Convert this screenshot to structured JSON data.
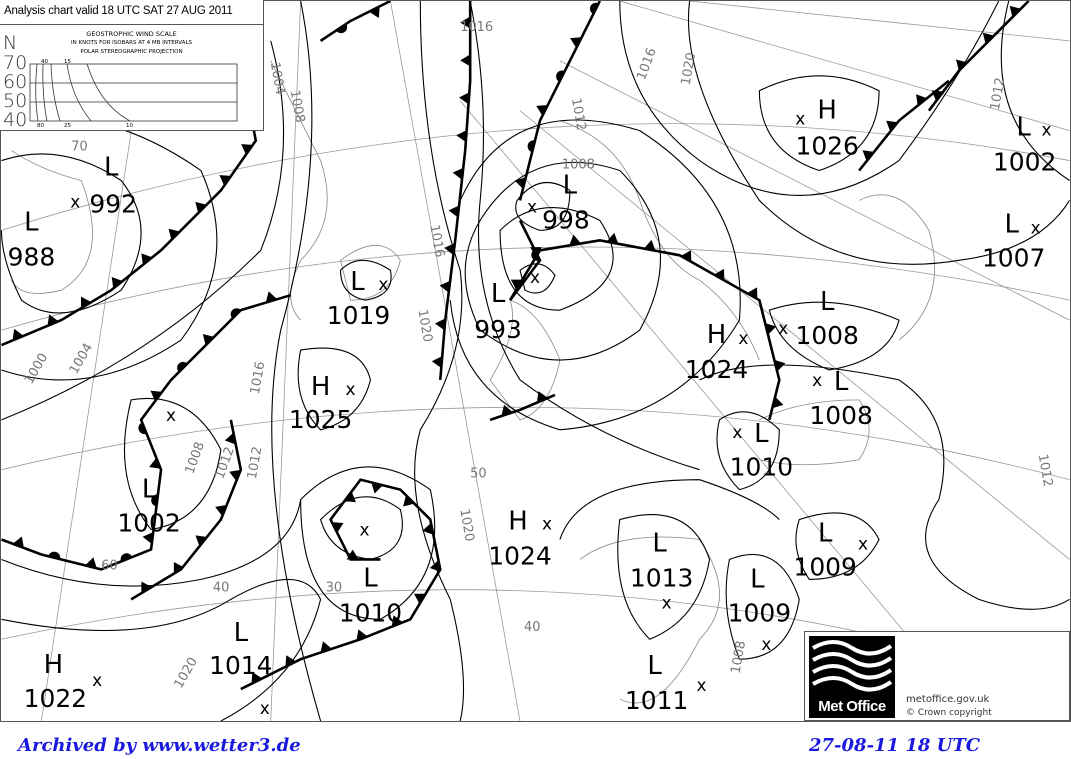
{
  "header": {
    "title": "Analysis chart valid 18 UTC SAT 27 AUG 2011",
    "wind_scale_title": "GEOSTROPHIC WIND SCALE",
    "wind_scale_subtitle": "IN KNOTS FOR ISOBARS AT  4 MB INTERVALS",
    "projection": "POLAR STEREOGRAPHIC PROJECTION",
    "north_label": "N",
    "latitudes": [
      "70",
      "60",
      "50",
      "40"
    ],
    "scale_top_labels": [
      "40",
      "15"
    ],
    "scale_bottom_labels": [
      "80",
      "25",
      "10"
    ]
  },
  "pressure_centres": [
    {
      "type": "L",
      "value": "992"
    },
    {
      "type": "L",
      "value": "988"
    },
    {
      "type": "L",
      "value": "1019"
    },
    {
      "type": "L",
      "value": "998"
    },
    {
      "type": "L",
      "value": "993"
    },
    {
      "type": "H",
      "value": "1026"
    },
    {
      "type": "L",
      "value": "1002"
    },
    {
      "type": "L",
      "value": "1007"
    },
    {
      "type": "L",
      "value": "1008"
    },
    {
      "type": "H",
      "value": "1024"
    },
    {
      "type": "L",
      "value": "1008"
    },
    {
      "type": "L",
      "value": "1010"
    },
    {
      "type": "H",
      "value": "1025"
    },
    {
      "type": "L",
      "value": "1002"
    },
    {
      "type": "H",
      "value": "1024"
    },
    {
      "type": "L",
      "value": "1010"
    },
    {
      "type": "L",
      "value": "1013"
    },
    {
      "type": "L",
      "value": "1009"
    },
    {
      "type": "L",
      "value": "1009"
    },
    {
      "type": "L",
      "value": "1014"
    },
    {
      "type": "H",
      "value": "1022"
    },
    {
      "type": "L",
      "value": "1011"
    }
  ],
  "isobar_labels": [
    "1016",
    "1008",
    "1004",
    "1020",
    "1016",
    "1012",
    "1008",
    "1016",
    "1020",
    "1012",
    "1000",
    "1004",
    "1016",
    "1008",
    "1012",
    "1020",
    "1012",
    "1012",
    "1020",
    "1008"
  ],
  "graticule_labels": [
    "50",
    "40",
    "30",
    "40",
    "60",
    "70"
  ],
  "logo": {
    "text": "Met Office",
    "url": "metoffice.gov.uk",
    "copyright": "© Crown copyright"
  },
  "footer": {
    "archive": "Archived by www.wetter3.de",
    "timestamp": "27-08-11 18 UTC"
  },
  "colors": {
    "footer_text": "#1a1adf",
    "chart_lines": "#000000",
    "coastlines": "#888888"
  }
}
